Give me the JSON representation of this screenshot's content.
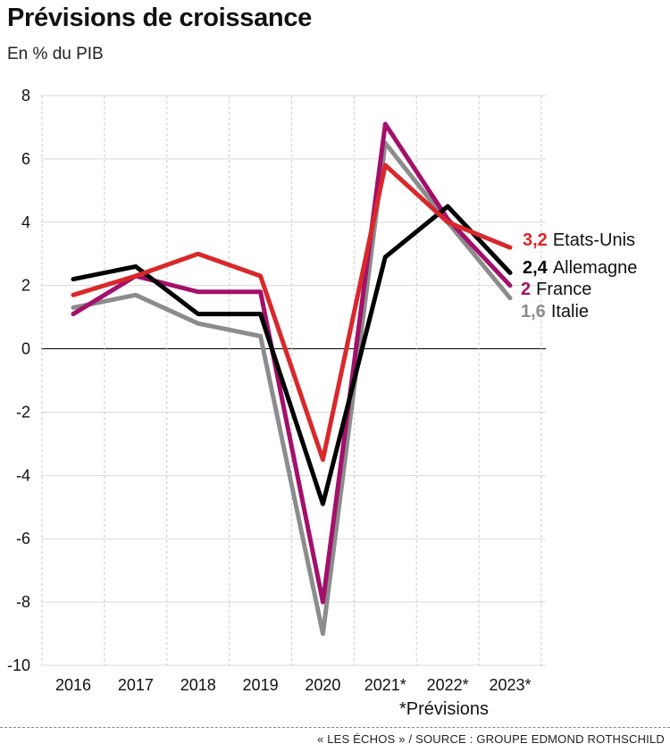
{
  "chart_data": {
    "type": "line",
    "title": "Prévisions de croissance",
    "subtitle": "En % du PIB",
    "categories": [
      "2016",
      "2017",
      "2018",
      "2019",
      "2020",
      "2021*",
      "2022*",
      "2023*"
    ],
    "ylim": [
      -10,
      8
    ],
    "yticks": [
      "8",
      "6",
      "4",
      "2",
      "0",
      "-2",
      "-4",
      "-6",
      "-8",
      "-10"
    ],
    "ytick_values": [
      8,
      6,
      4,
      2,
      0,
      -2,
      -4,
      -6,
      -8,
      -10
    ],
    "grid": true,
    "series": [
      {
        "name": "Italie",
        "color": "#8c8c8c",
        "values": [
          1.3,
          1.7,
          0.8,
          0.4,
          -9.0,
          6.5,
          4.0,
          1.6
        ],
        "end_label": "1,6"
      },
      {
        "name": "France",
        "color": "#a3106b",
        "values": [
          1.1,
          2.3,
          1.8,
          1.8,
          -8.0,
          7.1,
          4.1,
          2.0
        ],
        "end_label": "2"
      },
      {
        "name": "Allemagne",
        "color": "#000000",
        "values": [
          2.2,
          2.6,
          1.1,
          1.1,
          -4.9,
          2.9,
          4.5,
          2.4
        ],
        "end_label": "2,4"
      },
      {
        "name": "Etats-Unis",
        "color": "#d8282b",
        "values": [
          1.7,
          2.3,
          3.0,
          2.3,
          -3.5,
          5.8,
          4.0,
          3.2
        ],
        "end_label": "3,2"
      }
    ],
    "annotation": "*Prévisions"
  },
  "footer": {
    "source": "« LES ÉCHOS » / SOURCE : GROUPE EDMOND ROTHSCHILD"
  }
}
